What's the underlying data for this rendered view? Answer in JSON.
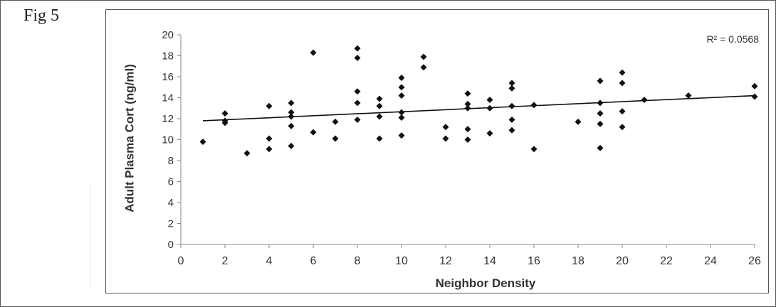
{
  "figure_label": "Fig 5",
  "chart_data": {
    "type": "scatter",
    "xlabel": "Neighbor Density",
    "ylabel": "Adult Plasma Cort (ng/ml)",
    "xlim": [
      0,
      26
    ],
    "ylim": [
      0,
      20
    ],
    "x_ticks": [
      0,
      2,
      4,
      6,
      8,
      10,
      12,
      14,
      16,
      18,
      20,
      22,
      24,
      26
    ],
    "y_ticks": [
      0,
      2,
      4,
      6,
      8,
      10,
      12,
      14,
      16,
      18,
      20
    ],
    "grid": false,
    "marker": "diamond",
    "colors": {
      "points": "#111111",
      "trendline": "#111111",
      "axis": "#888888",
      "text": "#333333"
    },
    "trendline": {
      "type": "linear",
      "x": [
        1,
        26
      ],
      "y": [
        11.8,
        14.2
      ],
      "label": "R² = 0.0568"
    },
    "points": [
      [
        1,
        9.8
      ],
      [
        2,
        12.5
      ],
      [
        2,
        11.8
      ],
      [
        2,
        11.6
      ],
      [
        3,
        8.7
      ],
      [
        4,
        13.2
      ],
      [
        4,
        10.1
      ],
      [
        4,
        9.1
      ],
      [
        5,
        13.5
      ],
      [
        5,
        12.6
      ],
      [
        5,
        12.2
      ],
      [
        5,
        11.3
      ],
      [
        5,
        9.4
      ],
      [
        6,
        18.3
      ],
      [
        6,
        10.7
      ],
      [
        7,
        11.7
      ],
      [
        7,
        10.1
      ],
      [
        8,
        18.7
      ],
      [
        8,
        17.8
      ],
      [
        8,
        14.6
      ],
      [
        8,
        13.5
      ],
      [
        8,
        11.9
      ],
      [
        9,
        13.9
      ],
      [
        9,
        13.2
      ],
      [
        9,
        12.2
      ],
      [
        9,
        10.1
      ],
      [
        10,
        15.9
      ],
      [
        10,
        15.0
      ],
      [
        10,
        14.2
      ],
      [
        10,
        12.6
      ],
      [
        10,
        12.1
      ],
      [
        10,
        10.4
      ],
      [
        11,
        17.9
      ],
      [
        11,
        16.9
      ],
      [
        12,
        11.2
      ],
      [
        12,
        10.1
      ],
      [
        13,
        14.4
      ],
      [
        13,
        13.4
      ],
      [
        13,
        13.0
      ],
      [
        13,
        11.0
      ],
      [
        13,
        10.0
      ],
      [
        14,
        13.8
      ],
      [
        14,
        13.0
      ],
      [
        14,
        10.6
      ],
      [
        15,
        15.4
      ],
      [
        15,
        14.9
      ],
      [
        15,
        13.2
      ],
      [
        15,
        11.9
      ],
      [
        15,
        10.9
      ],
      [
        16,
        13.3
      ],
      [
        16,
        9.1
      ],
      [
        18,
        11.7
      ],
      [
        19,
        15.6
      ],
      [
        19,
        13.5
      ],
      [
        19,
        12.5
      ],
      [
        19,
        11.5
      ],
      [
        19,
        9.2
      ],
      [
        20,
        16.4
      ],
      [
        20,
        15.4
      ],
      [
        20,
        12.7
      ],
      [
        20,
        11.2
      ],
      [
        21,
        13.8
      ],
      [
        23,
        14.2
      ],
      [
        26,
        15.1
      ],
      [
        26,
        14.1
      ]
    ]
  }
}
